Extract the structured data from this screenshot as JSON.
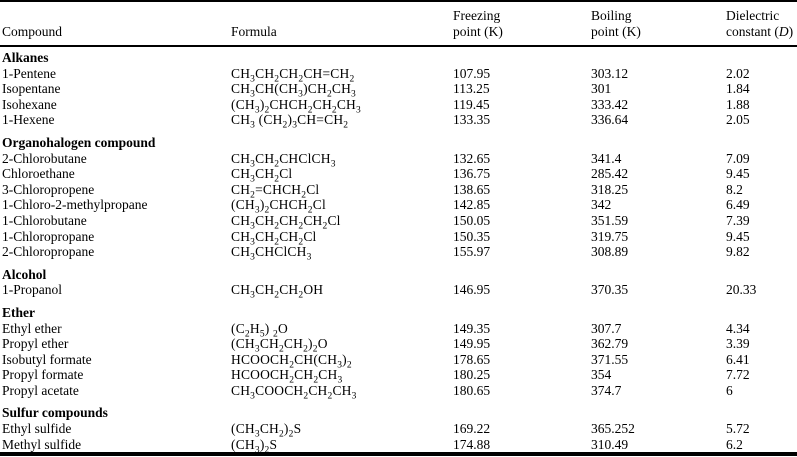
{
  "table": {
    "header": {
      "compound": "Compound",
      "formula": "Formula",
      "freezing_line1": "Freezing",
      "freezing_line2": "point (K)",
      "boiling_line1": "Boiling",
      "boiling_line2": "point (K)",
      "dielectric_line1": "Dielectric",
      "dielectric_line2_prefix": "constant (",
      "dielectric_line2_italic": "D",
      "dielectric_line2_suffix": ")"
    },
    "sections": [
      {
        "title": "Alkanes",
        "rows": [
          {
            "compound": "1-Pentene",
            "formula": "CH_3_CH_2_CH_2_CH=CH_2_",
            "freezing_point_k": "107.95",
            "boiling_point_k": "303.12",
            "dielectric_constant": "2.02"
          },
          {
            "compound": "Isopentane",
            "formula": "CH_3_CH(CH_3_)CH_2_CH_3_",
            "freezing_point_k": "113.25",
            "boiling_point_k": "301",
            "dielectric_constant": "1.84"
          },
          {
            "compound": "Isohexane",
            "formula": "(CH_3_)_2_CHCH_2_CH_2_CH_3_",
            "freezing_point_k": "119.45",
            "boiling_point_k": "333.42",
            "dielectric_constant": "1.88"
          },
          {
            "compound": "1-Hexene",
            "formula": "CH_3_ (CH_2_)_3_CH=CH_2_",
            "freezing_point_k": "133.35",
            "boiling_point_k": "336.64",
            "dielectric_constant": "2.05"
          }
        ]
      },
      {
        "title": "Organohalogen compound",
        "rows": [
          {
            "compound": "2-Chlorobutane",
            "formula": "CH_3_CH_2_CHClCH_3_",
            "freezing_point_k": "132.65",
            "boiling_point_k": "341.4",
            "dielectric_constant": "7.09"
          },
          {
            "compound": "Chloroethane",
            "formula": "CH_3_CH_2_Cl",
            "freezing_point_k": "136.75",
            "boiling_point_k": "285.42",
            "dielectric_constant": "9.45"
          },
          {
            "compound": "3-Chloropropene",
            "formula": "CH_2_=CHCH_2_Cl",
            "freezing_point_k": "138.65",
            "boiling_point_k": "318.25",
            "dielectric_constant": "8.2"
          },
          {
            "compound": "1-Chloro-2-methylpropane",
            "formula": "(CH_3_)_2_CHCH_2_Cl",
            "freezing_point_k": "142.85",
            "boiling_point_k": "342",
            "dielectric_constant": "6.49"
          },
          {
            "compound": "1-Chlorobutane",
            "formula": "CH_3_CH_2_CH_2_CH_2_Cl",
            "freezing_point_k": "150.05",
            "boiling_point_k": "351.59",
            "dielectric_constant": "7.39"
          },
          {
            "compound": "1-Chloropropane",
            "formula": "CH_3_CH_2_CH_2_Cl",
            "freezing_point_k": "150.35",
            "boiling_point_k": "319.75",
            "dielectric_constant": "9.45"
          },
          {
            "compound": "2-Chloropropane",
            "formula": "CH_3_CHClCH_3_",
            "freezing_point_k": "155.97",
            "boiling_point_k": "308.89",
            "dielectric_constant": "9.82"
          }
        ]
      },
      {
        "title": "Alcohol",
        "rows": [
          {
            "compound": "1-Propanol",
            "formula": "CH_3_CH_2_CH_2_OH",
            "freezing_point_k": "146.95",
            "boiling_point_k": "370.35",
            "dielectric_constant": "20.33"
          }
        ]
      },
      {
        "title": "Ether",
        "rows": [
          {
            "compound": "Ethyl ether",
            "formula": "(C_2_H_5_) _2_O",
            "freezing_point_k": "149.35",
            "boiling_point_k": "307.7",
            "dielectric_constant": "4.34"
          },
          {
            "compound": "Propyl ether",
            "formula": "(CH_3_CH_2_CH_2_)_2_O",
            "freezing_point_k": "149.95",
            "boiling_point_k": "362.79",
            "dielectric_constant": "3.39"
          },
          {
            "compound": "Isobutyl formate",
            "formula": "HCOOCH_2_CH(CH_3_)_2_",
            "freezing_point_k": "178.65",
            "boiling_point_k": "371.55",
            "dielectric_constant": "6.41"
          },
          {
            "compound": "Propyl formate",
            "formula": "HCOOCH_2_CH_2_CH_3_",
            "freezing_point_k": "180.25",
            "boiling_point_k": "354",
            "dielectric_constant": "7.72"
          },
          {
            "compound": "Propyl acetate",
            "formula": "CH_3_COOCH_2_CH_2_CH_3_",
            "freezing_point_k": "180.65",
            "boiling_point_k": "374.7",
            "dielectric_constant": "6"
          }
        ]
      },
      {
        "title": "Sulfur compounds",
        "rows": [
          {
            "compound": "Ethyl sulfide",
            "formula": "(CH_3_CH_2_)_2_S",
            "freezing_point_k": "169.22",
            "boiling_point_k": "365.252",
            "dielectric_constant": "5.72"
          },
          {
            "compound": "Methyl sulfide",
            "formula": "(CH_3_)_2_S",
            "freezing_point_k": "174.88",
            "boiling_point_k": "310.49",
            "dielectric_constant": "6.2"
          }
        ]
      }
    ],
    "colors": {
      "text": "#000000",
      "background": "#ffffff",
      "rule": "#000000"
    }
  }
}
